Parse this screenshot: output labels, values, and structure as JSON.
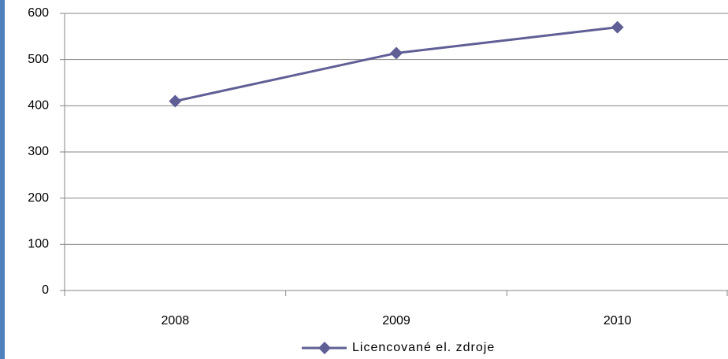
{
  "chart_data": {
    "type": "line",
    "categories": [
      "2008",
      "2009",
      "2010"
    ],
    "series": [
      {
        "name": "Licencované el. zdroje",
        "color": "#5f5f96",
        "values": [
          410,
          514,
          570
        ]
      }
    ],
    "ylim": [
      0,
      600
    ],
    "yticks": [
      0,
      100,
      200,
      300,
      400,
      500,
      600
    ],
    "grid": true,
    "legend": "bottom"
  }
}
